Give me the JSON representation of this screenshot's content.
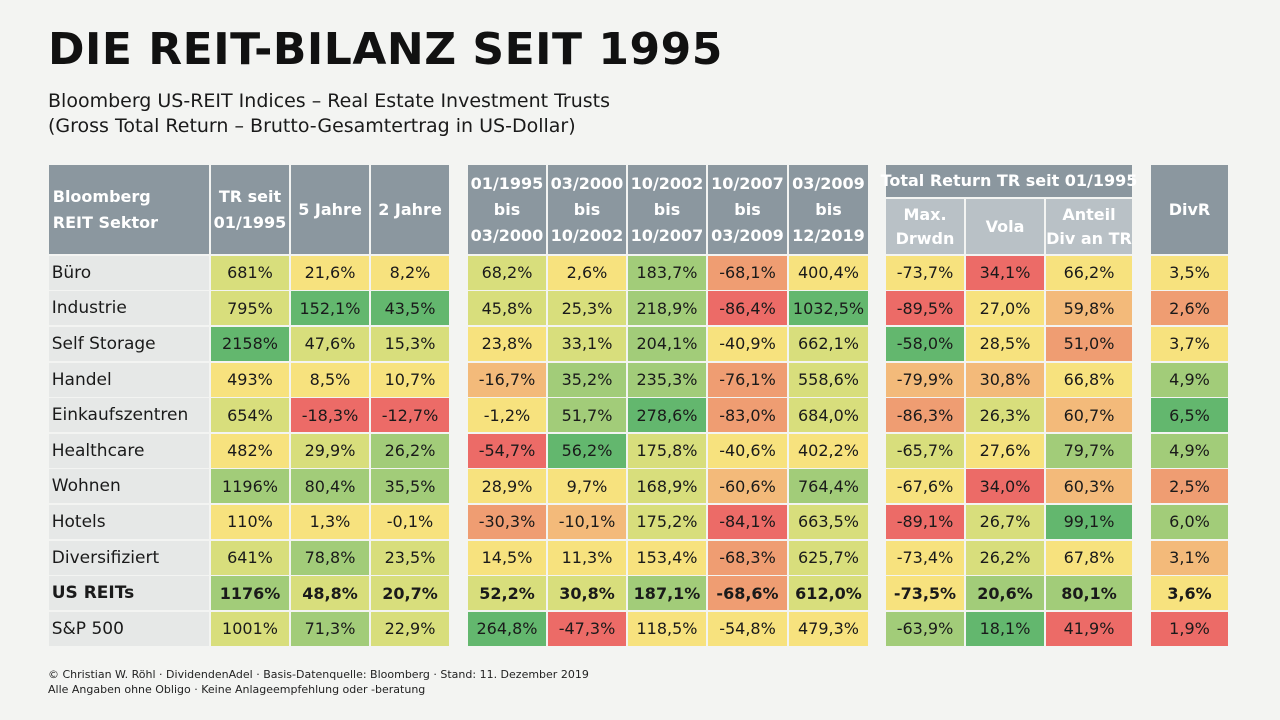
{
  "header": {
    "title": "DIE REIT-BILANZ SEIT 1995",
    "subtitle_line1": "Bloomberg US-REIT Indices – Real Estate Investment Trusts",
    "subtitle_line2": "(Gross Total Return – Brutto-Gesamtertrag in US-Dollar)"
  },
  "footer": {
    "line1": "© Christian W. Röhl · DividendenAdel · Basis-Datenquelle: Bloomberg · Stand: 11. Dezember 2019",
    "line2": "Alle Angaben ohne Obligo · Keine Anlageempfehlung oder -beratung"
  },
  "colors": {
    "header": "#8b979f",
    "subheader": "#b9c1c6",
    "label_bg": "#e6e8e7",
    "dark_green": "#63b76e",
    "green": "#a2cc79",
    "yellow_green": "#d8de7c",
    "yellow": "#f7e27e",
    "light_orange": "#f3ba7a",
    "orange": "#ef9d72",
    "red": "#ec6b67"
  },
  "chart_data": {
    "type": "table",
    "column_groups": [
      {
        "label": "Total Return TR seit 01/1995",
        "columns": [
          "max_drwdn",
          "vola",
          "anteil_div"
        ]
      }
    ],
    "columns": [
      {
        "key": "sektor",
        "label": [
          "Bloomberg",
          "REIT Sektor"
        ]
      },
      {
        "key": "tr_1995",
        "label": [
          "TR seit",
          "01/1995"
        ]
      },
      {
        "key": "j5",
        "label": [
          "5 Jahre"
        ]
      },
      {
        "key": "j2",
        "label": [
          "2 Jahre"
        ]
      },
      {
        "key": "p1",
        "label": [
          "01/1995",
          "bis",
          "03/2000"
        ]
      },
      {
        "key": "p2",
        "label": [
          "03/2000",
          "bis",
          "10/2002"
        ]
      },
      {
        "key": "p3",
        "label": [
          "10/2002",
          "bis",
          "10/2007"
        ]
      },
      {
        "key": "p4",
        "label": [
          "10/2007",
          "bis",
          "03/2009"
        ]
      },
      {
        "key": "p5",
        "label": [
          "03/2009",
          "bis",
          "12/2019"
        ]
      },
      {
        "key": "max_drwdn",
        "label": [
          "Max.",
          "Drwdn"
        ]
      },
      {
        "key": "vola",
        "label": [
          "Vola"
        ]
      },
      {
        "key": "anteil_div",
        "label": [
          "Anteil",
          "Div an TR"
        ]
      },
      {
        "key": "divr",
        "label": [
          "DivR"
        ]
      }
    ],
    "rows": [
      {
        "sektor": "Büro",
        "bold": false,
        "values": [
          "681%",
          "21,6%",
          "8,2%",
          "68,2%",
          "2,6%",
          "183,7%",
          "-68,1%",
          "400,4%",
          "-73,7%",
          "34,1%",
          "66,2%",
          "3,5%"
        ],
        "colors": [
          "yellow_green",
          "yellow",
          "yellow",
          "yellow_green",
          "yellow",
          "green",
          "orange",
          "yellow",
          "yellow",
          "red",
          "yellow",
          "yellow"
        ]
      },
      {
        "sektor": "Industrie",
        "bold": false,
        "values": [
          "795%",
          "152,1%",
          "43,5%",
          "45,8%",
          "25,3%",
          "218,9%",
          "-86,4%",
          "1032,5%",
          "-89,5%",
          "27,0%",
          "59,8%",
          "2,6%"
        ],
        "colors": [
          "yellow_green",
          "dark_green",
          "dark_green",
          "yellow_green",
          "yellow_green",
          "green",
          "red",
          "dark_green",
          "red",
          "yellow",
          "light_orange",
          "orange"
        ]
      },
      {
        "sektor": "Self Storage",
        "bold": false,
        "values": [
          "2158%",
          "47,6%",
          "15,3%",
          "23,8%",
          "33,1%",
          "204,1%",
          "-40,9%",
          "662,1%",
          "-58,0%",
          "28,5%",
          "51,0%",
          "3,7%"
        ],
        "colors": [
          "dark_green",
          "yellow_green",
          "yellow_green",
          "yellow",
          "yellow_green",
          "green",
          "yellow",
          "yellow_green",
          "dark_green",
          "yellow",
          "orange",
          "yellow"
        ]
      },
      {
        "sektor": "Handel",
        "bold": false,
        "values": [
          "493%",
          "8,5%",
          "10,7%",
          "-16,7%",
          "35,2%",
          "235,3%",
          "-76,1%",
          "558,6%",
          "-79,9%",
          "30,8%",
          "66,8%",
          "4,9%"
        ],
        "colors": [
          "yellow",
          "yellow",
          "yellow",
          "light_orange",
          "green",
          "green",
          "orange",
          "yellow_green",
          "light_orange",
          "light_orange",
          "yellow",
          "green"
        ]
      },
      {
        "sektor": "Einkaufszentren",
        "bold": false,
        "values": [
          "654%",
          "-18,3%",
          "-12,7%",
          "-1,2%",
          "51,7%",
          "278,6%",
          "-83,0%",
          "684,0%",
          "-86,3%",
          "26,3%",
          "60,7%",
          "6,5%"
        ],
        "colors": [
          "yellow_green",
          "red",
          "red",
          "yellow",
          "green",
          "dark_green",
          "orange",
          "yellow_green",
          "orange",
          "yellow_green",
          "light_orange",
          "dark_green"
        ]
      },
      {
        "sektor": "Healthcare",
        "bold": false,
        "values": [
          "482%",
          "29,9%",
          "26,2%",
          "-54,7%",
          "56,2%",
          "175,8%",
          "-40,6%",
          "402,2%",
          "-65,7%",
          "27,6%",
          "79,7%",
          "4,9%"
        ],
        "colors": [
          "yellow",
          "yellow_green",
          "green",
          "red",
          "dark_green",
          "yellow_green",
          "yellow",
          "yellow",
          "yellow_green",
          "yellow",
          "green",
          "green"
        ]
      },
      {
        "sektor": "Wohnen",
        "bold": false,
        "values": [
          "1196%",
          "80,4%",
          "35,5%",
          "28,9%",
          "9,7%",
          "168,9%",
          "-60,6%",
          "764,4%",
          "-67,6%",
          "34,0%",
          "60,3%",
          "2,5%"
        ],
        "colors": [
          "green",
          "green",
          "green",
          "yellow",
          "yellow",
          "yellow_green",
          "light_orange",
          "green",
          "yellow",
          "red",
          "light_orange",
          "orange"
        ]
      },
      {
        "sektor": "Hotels",
        "bold": false,
        "values": [
          "110%",
          "1,3%",
          "-0,1%",
          "-30,3%",
          "-10,1%",
          "175,2%",
          "-84,1%",
          "663,5%",
          "-89,1%",
          "26,7%",
          "99,1%",
          "6,0%"
        ],
        "colors": [
          "yellow",
          "yellow",
          "yellow",
          "orange",
          "light_orange",
          "yellow_green",
          "red",
          "yellow_green",
          "red",
          "yellow_green",
          "dark_green",
          "green"
        ]
      },
      {
        "sektor": "Diversifiziert",
        "bold": false,
        "values": [
          "641%",
          "78,8%",
          "23,5%",
          "14,5%",
          "11,3%",
          "153,4%",
          "-68,3%",
          "625,7%",
          "-73,4%",
          "26,2%",
          "67,8%",
          "3,1%"
        ],
        "colors": [
          "yellow_green",
          "green",
          "yellow_green",
          "yellow",
          "yellow",
          "yellow",
          "orange",
          "yellow_green",
          "yellow",
          "yellow_green",
          "yellow",
          "light_orange"
        ]
      },
      {
        "sektor": "US REITs",
        "bold": true,
        "values": [
          "1176%",
          "48,8%",
          "20,7%",
          "52,2%",
          "30,8%",
          "187,1%",
          "-68,6%",
          "612,0%",
          "-73,5%",
          "20,6%",
          "80,1%",
          "3,6%"
        ],
        "colors": [
          "green",
          "yellow_green",
          "yellow_green",
          "yellow_green",
          "yellow_green",
          "green",
          "orange",
          "yellow_green",
          "yellow",
          "green",
          "green",
          "yellow"
        ]
      },
      {
        "sektor": "S&P 500",
        "bold": false,
        "values": [
          "1001%",
          "71,3%",
          "22,9%",
          "264,8%",
          "-47,3%",
          "118,5%",
          "-54,8%",
          "479,3%",
          "-63,9%",
          "18,1%",
          "41,9%",
          "1,9%"
        ],
        "colors": [
          "yellow_green",
          "green",
          "yellow_green",
          "dark_green",
          "red",
          "yellow",
          "yellow",
          "yellow",
          "green",
          "dark_green",
          "red",
          "red"
        ]
      }
    ]
  }
}
